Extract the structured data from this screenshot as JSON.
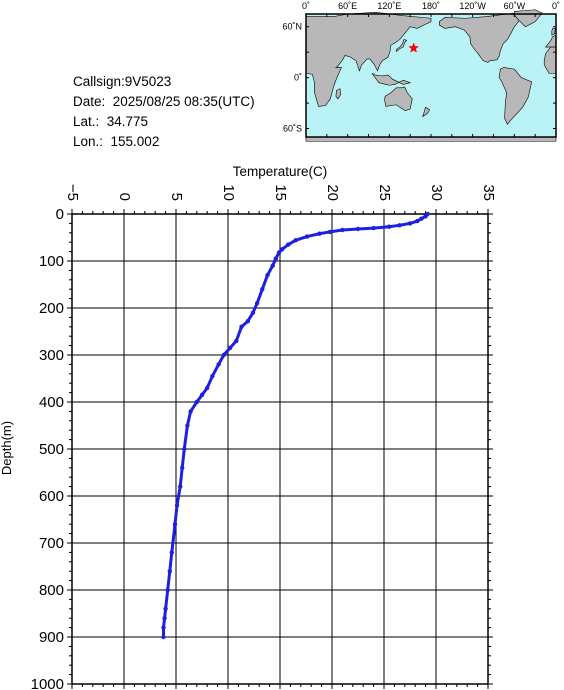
{
  "info": {
    "callsign": "Callsign:9V5023",
    "date": "Date:  2025/08/25 08:35(UTC)",
    "lat": "Lat.:  34.775",
    "lon": "Lon.:  155.002"
  },
  "map": {
    "lon_labels": [
      "0˚",
      "60˚E",
      "120˚E",
      "180˚",
      "120˚W",
      "60˚W",
      "0˚"
    ],
    "lat_labels": [
      "60˚N",
      "0˚",
      "60˚S"
    ],
    "ocean_color": "#b9f3f5",
    "land_color": "#b8b8b8",
    "marker": {
      "lat": 34.775,
      "lon": 155.002,
      "symbol": "star",
      "color": "#ff0000"
    }
  },
  "chart_data": {
    "type": "line",
    "xlabel": "Temperature(C)",
    "ylabel": "Depth(m)",
    "xlim": [
      -5,
      35
    ],
    "ylim": [
      0,
      1000
    ],
    "y_inverted": true,
    "x_axis_position": "top",
    "grid": true,
    "xticks": [
      -5,
      0,
      5,
      10,
      15,
      20,
      25,
      30,
      35
    ],
    "yticks": [
      0,
      100,
      200,
      300,
      400,
      500,
      600,
      700,
      800,
      900,
      1000
    ],
    "series_color": "#1f1fe0",
    "series": [
      {
        "temperature": [
          29.2,
          29.0,
          28.6,
          28.2,
          27.5,
          26.5,
          25.5,
          24.0,
          22.5,
          21.0,
          19.8,
          18.8,
          17.6,
          16.5,
          15.8,
          15.2,
          14.9,
          14.6,
          14.3,
          13.8,
          13.3,
          12.8,
          12.4,
          11.9,
          11.3,
          10.8,
          10.2,
          9.6,
          9.1,
          8.5,
          8.0,
          7.5,
          7.0,
          6.4,
          6.1,
          5.8,
          5.6,
          5.4,
          5.1,
          4.9,
          4.6,
          4.4,
          4.2,
          4.0,
          3.9,
          3.8,
          3.8
        ],
        "depth": [
          0,
          5,
          10,
          15,
          20,
          24,
          27,
          30,
          32,
          34,
          38,
          42,
          48,
          56,
          65,
          75,
          82,
          95,
          110,
          130,
          160,
          190,
          210,
          228,
          240,
          270,
          285,
          300,
          320,
          345,
          370,
          385,
          400,
          420,
          450,
          500,
          540,
          580,
          620,
          660,
          720,
          760,
          800,
          840,
          860,
          880,
          900
        ]
      }
    ]
  }
}
